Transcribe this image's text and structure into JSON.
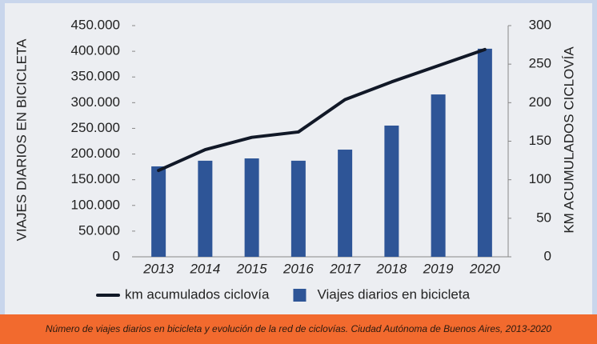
{
  "chart_data": {
    "type": "bar",
    "categories": [
      "2013",
      "2014",
      "2015",
      "2016",
      "2017",
      "2018",
      "2019",
      "2020"
    ],
    "series": [
      {
        "name": "km acumulados ciclovía",
        "type": "line",
        "axis": "y2",
        "color": "#111827",
        "values": [
          112,
          139,
          155,
          162,
          204,
          227,
          248,
          269
        ]
      },
      {
        "name": "Viajes diarios en bicicleta",
        "type": "bar",
        "color": "#2e5597",
        "values": [
          176000,
          187000,
          191500,
          187000,
          208600,
          255400,
          316000,
          405000
        ]
      }
    ],
    "ylabel": "VIAJES DIARIOS EN BICICLETA",
    "y2label": "KM ACUMULADOS CICLOVÍA",
    "ylim": [
      0,
      450000
    ],
    "yticks": [
      0,
      {
        "value": 50000,
        "label": "50.000"
      },
      {
        "value": 100000,
        "label": "100.000"
      },
      {
        "value": 150000,
        "label": "150.000"
      },
      {
        "value": 200000,
        "label": "200.000"
      },
      {
        "value": 250000,
        "label": "250.000"
      },
      {
        "value": 300000,
        "label": "300.000"
      },
      {
        "value": 350000,
        "label": "350.000"
      },
      {
        "value": 400000,
        "label": "400.000"
      },
      {
        "value": 450000,
        "label": "450.000"
      }
    ],
    "y2lim": [
      0,
      300
    ],
    "y2ticks": [
      0,
      50,
      100,
      150,
      200,
      250,
      300
    ],
    "grid": false,
    "legend": "bottom",
    "caption": "Número de viajes diarios en bicicleta y evolución de la red de ciclovías. Ciudad Autónoma de Buenos Aires, 2013-2020"
  }
}
